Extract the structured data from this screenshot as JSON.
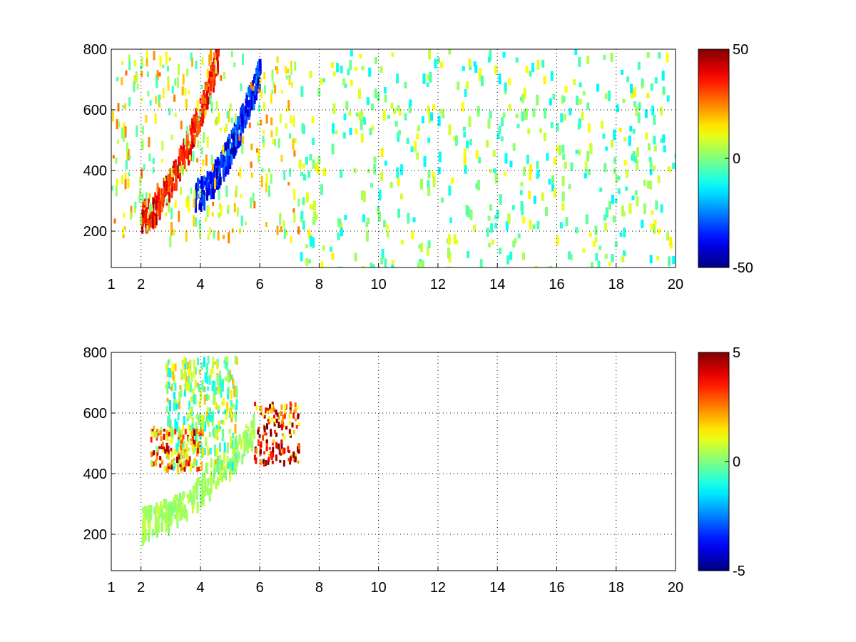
{
  "chart_data": [
    {
      "type": "heatmap",
      "title": "",
      "xlabel": "",
      "ylabel": "",
      "xlim": [
        1,
        20
      ],
      "ylim": [
        80,
        800
      ],
      "xticks": [
        1,
        2,
        4,
        6,
        8,
        10,
        12,
        14,
        16,
        18,
        20
      ],
      "yticks": [
        200,
        400,
        600,
        800
      ],
      "grid": true,
      "colormap": "jet",
      "colorbar": {
        "min": -50,
        "max": 50,
        "ticks": [
          50,
          0,
          -50
        ],
        "position": "right"
      },
      "features": [
        {
          "description_kind": "band",
          "x_from": 2.0,
          "x_to": 4.6,
          "y_at_start": 260,
          "y_at_end": 800,
          "value": 45
        },
        {
          "description_kind": "band",
          "x_from": 3.8,
          "x_to": 6.0,
          "y_at_start": 330,
          "y_at_end": 750,
          "value": -45
        },
        {
          "description_kind": "region",
          "x_from": 1.0,
          "x_to": 7.3,
          "y_from": 180,
          "y_to": 800,
          "value": 10
        },
        {
          "description_kind": "noise",
          "x_from": 7.3,
          "x_to": 20.0,
          "y_from": 80,
          "y_to": 800,
          "value": 0
        }
      ]
    },
    {
      "type": "heatmap",
      "title": "",
      "xlabel": "",
      "ylabel": "",
      "xlim": [
        1,
        20
      ],
      "ylim": [
        80,
        800
      ],
      "xticks": [
        1,
        2,
        4,
        6,
        8,
        10,
        12,
        14,
        16,
        18,
        20
      ],
      "yticks": [
        200,
        400,
        600,
        800
      ],
      "grid": true,
      "colormap": "jet",
      "colorbar": {
        "min": -5,
        "max": 5,
        "ticks": [
          5,
          0,
          -5
        ],
        "position": "right"
      },
      "features": [
        {
          "description_kind": "band",
          "x_from": 2.0,
          "x_to": 5.8,
          "y_at_start": 250,
          "y_at_end": 560,
          "value": 0.5
        },
        {
          "description_kind": "region",
          "x_from": 2.8,
          "x_to": 5.2,
          "y_from": 430,
          "y_to": 790,
          "value": 0.3
        },
        {
          "description_kind": "cluster",
          "x_from": 5.8,
          "x_to": 7.3,
          "y_from": 440,
          "y_to": 640,
          "value": 3.5
        },
        {
          "description_kind": "cluster",
          "x_from": 2.3,
          "x_to": 4.0,
          "y_from": 420,
          "y_to": 560,
          "value": 2.5
        }
      ]
    }
  ]
}
